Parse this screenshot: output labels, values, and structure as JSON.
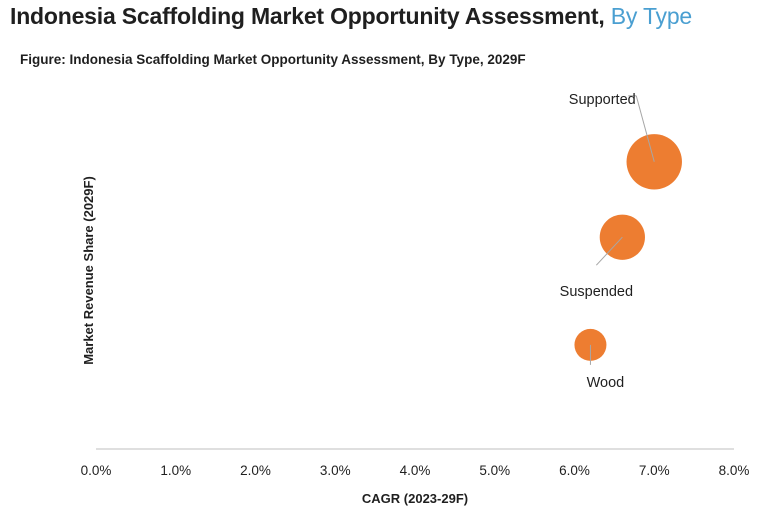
{
  "page": {
    "title_main": "Indonesia Scaffolding  Market Opportunity Assessment,",
    "title_accent": "By Type",
    "subtitle": "Figure: Indonesia Scaffolding Market Opportunity Assessment, By Type, 2029F"
  },
  "colors": {
    "bubble": "#ED7D31",
    "axis": "#bfbfbf",
    "leader": "#a6a6a6",
    "title_accent": "#4a9fd1"
  },
  "chart_data": {
    "type": "scatter",
    "title": "Figure: Indonesia Scaffolding Market Opportunity Assessment, By Type, 2029F",
    "xlabel": "CAGR (2023-29F)",
    "ylabel": "Market Revenue Share (2029F)",
    "xlim": [
      0,
      8
    ],
    "ylim": [
      0,
      100
    ],
    "xticks": [
      "0.0%",
      "1.0%",
      "2.0%",
      "3.0%",
      "4.0%",
      "5.0%",
      "6.0%",
      "7.0%",
      "8.0%"
    ],
    "grid": false,
    "series": [
      {
        "name": "Supported",
        "x": 7.0,
        "y": 80,
        "size": 3.0,
        "label_position": "top-left"
      },
      {
        "name": "Suspended",
        "x": 6.6,
        "y": 59,
        "size": 2.0,
        "label_position": "bottom-left"
      },
      {
        "name": "Wood",
        "x": 6.2,
        "y": 29,
        "size": 1.0,
        "label_position": "bottom"
      }
    ]
  }
}
